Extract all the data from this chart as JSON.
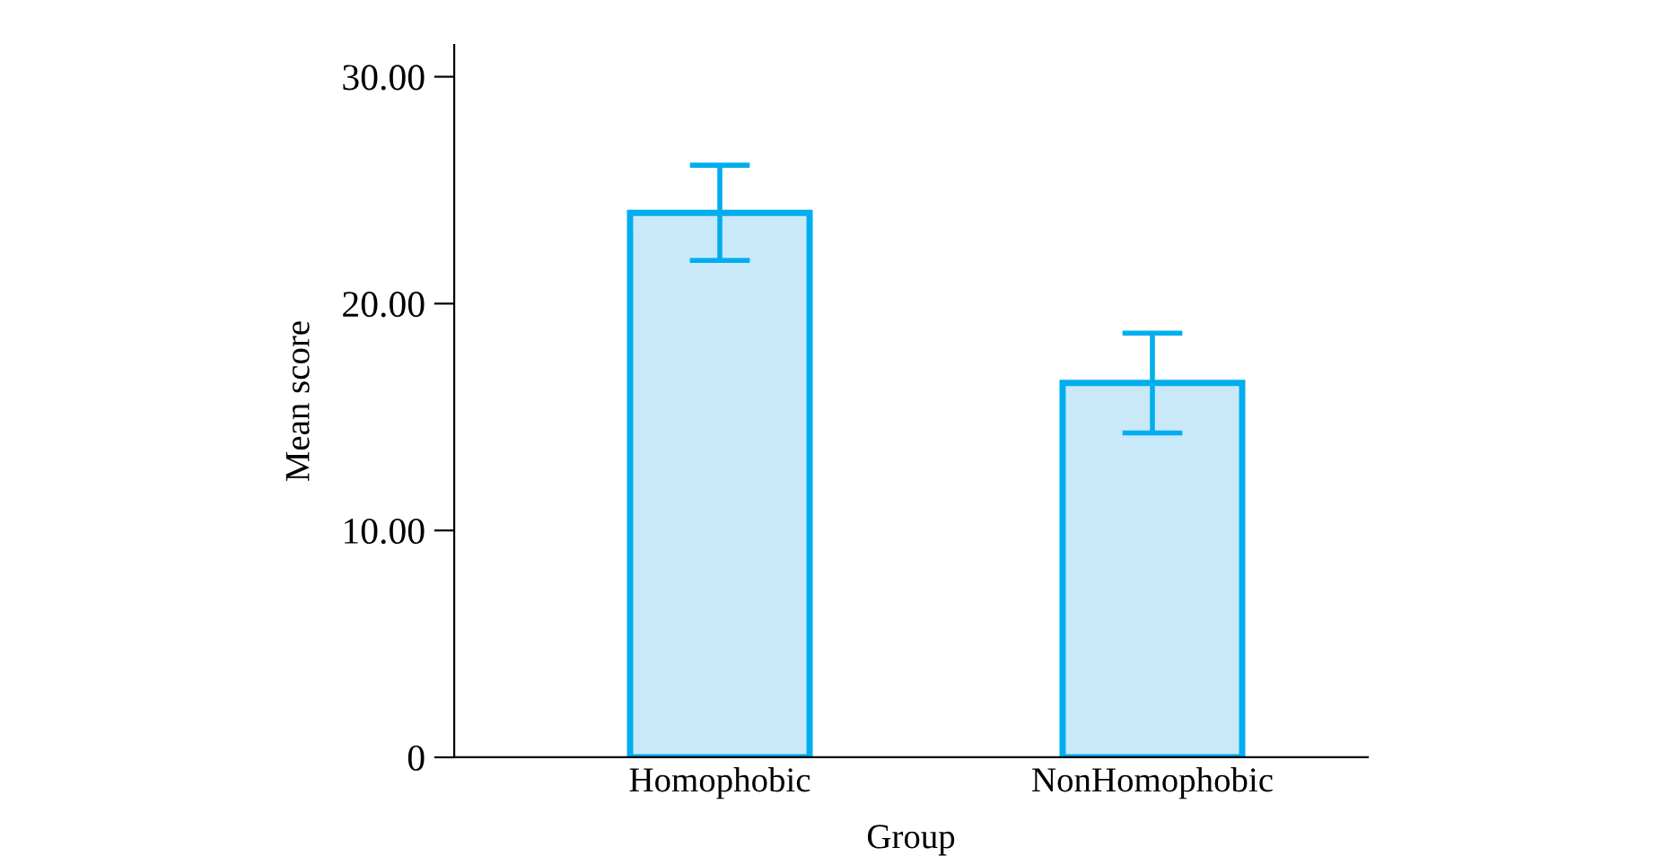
{
  "chart_data": {
    "type": "bar",
    "xlabel": "Group",
    "ylabel": "Mean score",
    "categories": [
      "Homophobic",
      "NonHomophobic"
    ],
    "series": [
      {
        "color": "#c9e9f9",
        "values": [
          24.0,
          16.5
        ],
        "errors": [
          2.1,
          2.2
        ]
      }
    ],
    "ylim": [
      0,
      31.4
    ],
    "yticks": [
      {
        "value": 0,
        "label": "0"
      },
      {
        "value": 10,
        "label": "10.00"
      },
      {
        "value": 20,
        "label": "20.00"
      },
      {
        "value": 30,
        "label": "30.00"
      }
    ],
    "grid": false,
    "legend": false
  }
}
